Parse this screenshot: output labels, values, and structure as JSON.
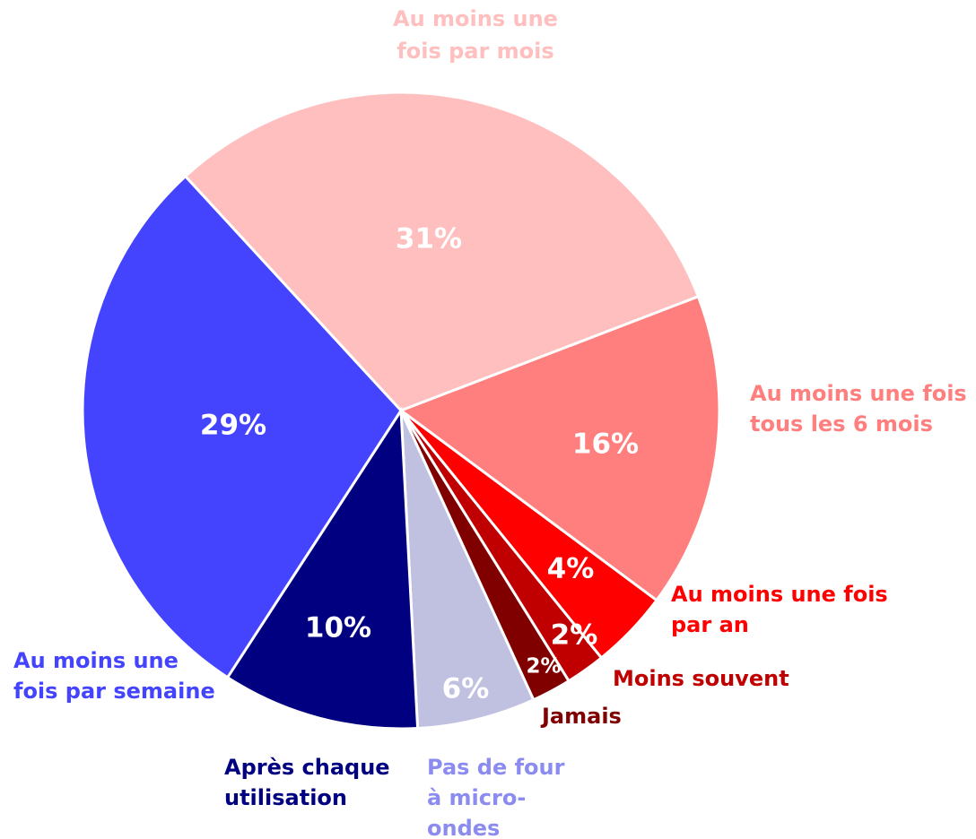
{
  "chart_data": {
    "type": "pie",
    "labels": [
      [
        "Au moins une",
        "fois par mois"
      ],
      [
        "Au moins une fois",
        "tous les 6 mois"
      ],
      [
        "Au moins une fois",
        "par an"
      ],
      [
        "Moins souvent"
      ],
      [
        "Jamais"
      ],
      [
        "Pas de four",
        "à micro-",
        "ondes"
      ],
      [
        "Après chaque",
        "utilisation"
      ],
      [
        "Au moins une",
        "fois par semaine"
      ]
    ],
    "values": [
      31,
      16,
      4,
      2,
      2,
      6,
      10,
      29
    ],
    "value_labels": [
      "31%",
      "16%",
      "4%",
      "2%",
      "2%",
      "6%",
      "10%",
      "29%"
    ],
    "colors": [
      "#ffbfbf",
      "#ff7f7f",
      "#ff0000",
      "#c00000",
      "#800000",
      "#c0c0e0",
      "#000080",
      "#4444ff"
    ],
    "label_colors": [
      "#ffbfbf",
      "#ff7f7f",
      "#ff0000",
      "#c00000",
      "#800000",
      "#8c8cf0",
      "#000080",
      "#4444ff"
    ]
  }
}
